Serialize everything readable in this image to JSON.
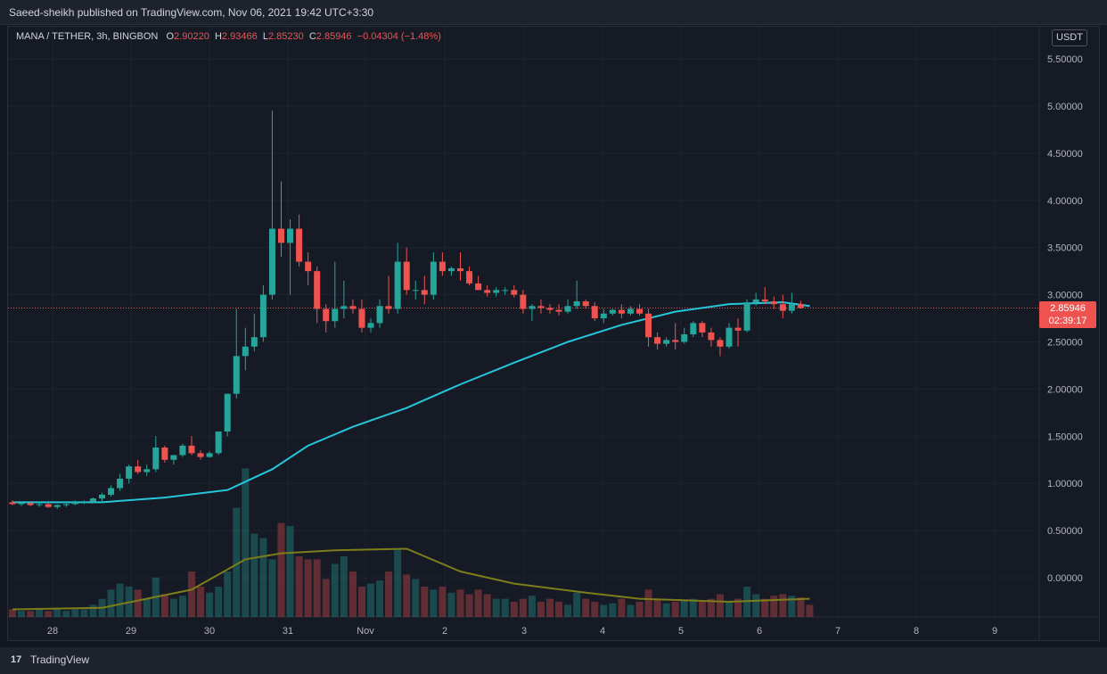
{
  "header": {
    "published": "Saeed-sheikh published on TradingView.com, Nov 06, 2021 19:42 UTC+3:30"
  },
  "legend": {
    "symbol": "MANA / TETHER, 3h, BINGBON",
    "o_label": "O",
    "o_value": "2.90220",
    "h_label": "H",
    "h_value": "2.93466",
    "l_label": "L",
    "l_value": "2.85230",
    "c_label": "C",
    "c_value": "2.85946",
    "change": "−0.04304 (−1.48%)"
  },
  "currency_button": "USDT",
  "price_tag": {
    "price": "2.85946",
    "countdown": "02:39:17"
  },
  "footer": {
    "brand": "TradingView"
  },
  "colors": {
    "up": "#26a69a",
    "down": "#ef5350",
    "ma": "#26c6da",
    "vol_ma": "#7d7d1a"
  },
  "chart_data": {
    "type": "candlestick",
    "y_axis_ticks": [
      "5.50000",
      "5.00000",
      "4.50000",
      "4.00000",
      "3.50000",
      "3.00000",
      "2.50000",
      "2.00000",
      "1.50000",
      "1.00000",
      "0.50000",
      "0.00000"
    ],
    "x_axis_ticks": [
      "28",
      "29",
      "30",
      "31",
      "Nov",
      "2",
      "3",
      "4",
      "5",
      "6",
      "7",
      "8",
      "9"
    ],
    "last_price": 2.85946,
    "candles": [
      {
        "o": 0.8,
        "h": 0.82,
        "l": 0.77,
        "c": 0.78
      },
      {
        "o": 0.78,
        "h": 0.8,
        "l": 0.76,
        "c": 0.79
      },
      {
        "o": 0.79,
        "h": 0.8,
        "l": 0.76,
        "c": 0.77
      },
      {
        "o": 0.77,
        "h": 0.79,
        "l": 0.75,
        "c": 0.78
      },
      {
        "o": 0.78,
        "h": 0.79,
        "l": 0.74,
        "c": 0.75
      },
      {
        "o": 0.75,
        "h": 0.78,
        "l": 0.73,
        "c": 0.77
      },
      {
        "o": 0.77,
        "h": 0.8,
        "l": 0.75,
        "c": 0.78
      },
      {
        "o": 0.78,
        "h": 0.82,
        "l": 0.77,
        "c": 0.8
      },
      {
        "o": 0.8,
        "h": 0.82,
        "l": 0.78,
        "c": 0.81
      },
      {
        "o": 0.81,
        "h": 0.85,
        "l": 0.79,
        "c": 0.84
      },
      {
        "o": 0.84,
        "h": 0.9,
        "l": 0.8,
        "c": 0.88
      },
      {
        "o": 0.88,
        "h": 0.98,
        "l": 0.86,
        "c": 0.95
      },
      {
        "o": 0.95,
        "h": 1.1,
        "l": 0.92,
        "c": 1.05
      },
      {
        "o": 1.05,
        "h": 1.2,
        "l": 1.0,
        "c": 1.18
      },
      {
        "o": 1.18,
        "h": 1.25,
        "l": 1.1,
        "c": 1.12
      },
      {
        "o": 1.12,
        "h": 1.2,
        "l": 1.08,
        "c": 1.15
      },
      {
        "o": 1.15,
        "h": 1.5,
        "l": 1.12,
        "c": 1.38
      },
      {
        "o": 1.38,
        "h": 1.4,
        "l": 1.22,
        "c": 1.25
      },
      {
        "o": 1.25,
        "h": 1.3,
        "l": 1.2,
        "c": 1.3
      },
      {
        "o": 1.3,
        "h": 1.42,
        "l": 1.28,
        "c": 1.4
      },
      {
        "o": 1.4,
        "h": 1.5,
        "l": 1.3,
        "c": 1.32
      },
      {
        "o": 1.32,
        "h": 1.35,
        "l": 1.25,
        "c": 1.28
      },
      {
        "o": 1.28,
        "h": 1.34,
        "l": 1.27,
        "c": 1.32
      },
      {
        "o": 1.32,
        "h": 1.55,
        "l": 1.3,
        "c": 1.55
      },
      {
        "o": 1.55,
        "h": 1.95,
        "l": 1.5,
        "c": 1.95
      },
      {
        "o": 1.95,
        "h": 2.85,
        "l": 1.9,
        "c": 2.35
      },
      {
        "o": 2.35,
        "h": 2.65,
        "l": 2.2,
        "c": 2.45
      },
      {
        "o": 2.45,
        "h": 2.8,
        "l": 2.4,
        "c": 2.55
      },
      {
        "o": 2.55,
        "h": 3.1,
        "l": 2.5,
        "c": 3.0
      },
      {
        "o": 3.0,
        "h": 4.95,
        "l": 2.95,
        "c": 3.7
      },
      {
        "o": 3.7,
        "h": 4.2,
        "l": 3.4,
        "c": 3.55
      },
      {
        "o": 3.55,
        "h": 3.8,
        "l": 3.0,
        "c": 3.7
      },
      {
        "o": 3.7,
        "h": 3.85,
        "l": 3.3,
        "c": 3.35
      },
      {
        "o": 3.35,
        "h": 3.45,
        "l": 3.1,
        "c": 3.25
      },
      {
        "o": 3.25,
        "h": 3.3,
        "l": 2.7,
        "c": 2.85
      },
      {
        "o": 2.85,
        "h": 2.9,
        "l": 2.6,
        "c": 2.72
      },
      {
        "o": 2.72,
        "h": 3.35,
        "l": 2.65,
        "c": 2.85
      },
      {
        "o": 2.85,
        "h": 3.15,
        "l": 2.75,
        "c": 2.88
      },
      {
        "o": 2.88,
        "h": 2.95,
        "l": 2.8,
        "c": 2.85
      },
      {
        "o": 2.85,
        "h": 2.95,
        "l": 2.6,
        "c": 2.65
      },
      {
        "o": 2.65,
        "h": 2.75,
        "l": 2.6,
        "c": 2.7
      },
      {
        "o": 2.7,
        "h": 2.95,
        "l": 2.65,
        "c": 2.88
      },
      {
        "o": 2.88,
        "h": 3.2,
        "l": 2.8,
        "c": 2.85
      },
      {
        "o": 2.85,
        "h": 3.55,
        "l": 2.8,
        "c": 3.35
      },
      {
        "o": 3.35,
        "h": 3.5,
        "l": 3.0,
        "c": 3.05
      },
      {
        "o": 3.05,
        "h": 3.15,
        "l": 2.95,
        "c": 3.05
      },
      {
        "o": 3.05,
        "h": 3.2,
        "l": 2.9,
        "c": 3.0
      },
      {
        "o": 3.0,
        "h": 3.45,
        "l": 2.95,
        "c": 3.35
      },
      {
        "o": 3.35,
        "h": 3.45,
        "l": 3.2,
        "c": 3.25
      },
      {
        "o": 3.25,
        "h": 3.3,
        "l": 3.2,
        "c": 3.28
      },
      {
        "o": 3.28,
        "h": 3.45,
        "l": 3.15,
        "c": 3.25
      },
      {
        "o": 3.25,
        "h": 3.3,
        "l": 3.1,
        "c": 3.12
      },
      {
        "o": 3.12,
        "h": 3.2,
        "l": 3.05,
        "c": 3.05
      },
      {
        "o": 3.05,
        "h": 3.1,
        "l": 2.98,
        "c": 3.02
      },
      {
        "o": 3.02,
        "h": 3.08,
        "l": 2.98,
        "c": 3.05
      },
      {
        "o": 3.05,
        "h": 3.08,
        "l": 3.0,
        "c": 3.05
      },
      {
        "o": 3.05,
        "h": 3.1,
        "l": 2.97,
        "c": 3.0
      },
      {
        "o": 3.0,
        "h": 3.05,
        "l": 2.8,
        "c": 2.85
      },
      {
        "o": 2.85,
        "h": 2.9,
        "l": 2.72,
        "c": 2.88
      },
      {
        "o": 2.88,
        "h": 2.95,
        "l": 2.8,
        "c": 2.86
      },
      {
        "o": 2.86,
        "h": 2.9,
        "l": 2.8,
        "c": 2.84
      },
      {
        "o": 2.84,
        "h": 2.9,
        "l": 2.78,
        "c": 2.82
      },
      {
        "o": 2.82,
        "h": 2.95,
        "l": 2.8,
        "c": 2.88
      },
      {
        "o": 2.88,
        "h": 3.15,
        "l": 2.85,
        "c": 2.93
      },
      {
        "o": 2.93,
        "h": 2.95,
        "l": 2.85,
        "c": 2.88
      },
      {
        "o": 2.88,
        "h": 2.92,
        "l": 2.72,
        "c": 2.75
      },
      {
        "o": 2.75,
        "h": 2.85,
        "l": 2.7,
        "c": 2.8
      },
      {
        "o": 2.8,
        "h": 2.85,
        "l": 2.78,
        "c": 2.84
      },
      {
        "o": 2.84,
        "h": 2.9,
        "l": 2.75,
        "c": 2.8
      },
      {
        "o": 2.8,
        "h": 2.88,
        "l": 2.78,
        "c": 2.85
      },
      {
        "o": 2.85,
        "h": 2.9,
        "l": 2.78,
        "c": 2.8
      },
      {
        "o": 2.8,
        "h": 2.85,
        "l": 2.45,
        "c": 2.55
      },
      {
        "o": 2.55,
        "h": 2.6,
        "l": 2.42,
        "c": 2.48
      },
      {
        "o": 2.48,
        "h": 2.55,
        "l": 2.45,
        "c": 2.52
      },
      {
        "o": 2.52,
        "h": 2.7,
        "l": 2.42,
        "c": 2.5
      },
      {
        "o": 2.5,
        "h": 2.65,
        "l": 2.48,
        "c": 2.58
      },
      {
        "o": 2.58,
        "h": 2.72,
        "l": 2.55,
        "c": 2.7
      },
      {
        "o": 2.7,
        "h": 2.72,
        "l": 2.55,
        "c": 2.6
      },
      {
        "o": 2.6,
        "h": 2.65,
        "l": 2.45,
        "c": 2.52
      },
      {
        "o": 2.52,
        "h": 2.55,
        "l": 2.35,
        "c": 2.45
      },
      {
        "o": 2.45,
        "h": 2.7,
        "l": 2.43,
        "c": 2.65
      },
      {
        "o": 2.65,
        "h": 2.75,
        "l": 2.45,
        "c": 2.62
      },
      {
        "o": 2.62,
        "h": 2.95,
        "l": 2.6,
        "c": 2.92
      },
      {
        "o": 2.92,
        "h": 3.02,
        "l": 2.88,
        "c": 2.95
      },
      {
        "o": 2.95,
        "h": 3.08,
        "l": 2.9,
        "c": 2.93
      },
      {
        "o": 2.93,
        "h": 2.98,
        "l": 2.85,
        "c": 2.9
      },
      {
        "o": 2.9,
        "h": 3.0,
        "l": 2.75,
        "c": 2.83
      },
      {
        "o": 2.83,
        "h": 3.02,
        "l": 2.8,
        "c": 2.9
      },
      {
        "o": 2.9022,
        "h": 2.93466,
        "l": 2.8523,
        "c": 2.85946
      }
    ],
    "ma_line": [
      {
        "i": 0,
        "v": 0.8
      },
      {
        "i": 10,
        "v": 0.8
      },
      {
        "i": 17,
        "v": 0.85
      },
      {
        "i": 24,
        "v": 0.93
      },
      {
        "i": 29,
        "v": 1.15
      },
      {
        "i": 33,
        "v": 1.4
      },
      {
        "i": 38,
        "v": 1.6
      },
      {
        "i": 44,
        "v": 1.8
      },
      {
        "i": 50,
        "v": 2.05
      },
      {
        "i": 56,
        "v": 2.28
      },
      {
        "i": 62,
        "v": 2.5
      },
      {
        "i": 68,
        "v": 2.68
      },
      {
        "i": 74,
        "v": 2.82
      },
      {
        "i": 80,
        "v": 2.9
      },
      {
        "i": 86,
        "v": 2.92
      },
      {
        "i": 89,
        "v": 2.88
      }
    ],
    "volumes": [
      5,
      4,
      4,
      5,
      4,
      5,
      4,
      5,
      5,
      8,
      12,
      18,
      22,
      20,
      18,
      12,
      26,
      15,
      12,
      14,
      30,
      20,
      16,
      20,
      30,
      72,
      98,
      55,
      52,
      38,
      62,
      60,
      40,
      38,
      38,
      25,
      35,
      40,
      30,
      20,
      22,
      24,
      30,
      45,
      28,
      25,
      20,
      18,
      20,
      16,
      18,
      15,
      18,
      15,
      12,
      12,
      10,
      12,
      14,
      10,
      12,
      10,
      8,
      16,
      12,
      10,
      8,
      9,
      12,
      8,
      10,
      18,
      12,
      9,
      10,
      11,
      12,
      10,
      12,
      15,
      10,
      12,
      20,
      15,
      12,
      14,
      15,
      14,
      13,
      8
    ],
    "vol_ma": [
      {
        "i": 0,
        "v": 5
      },
      {
        "i": 10,
        "v": 6
      },
      {
        "i": 20,
        "v": 18
      },
      {
        "i": 26,
        "v": 38
      },
      {
        "i": 30,
        "v": 42
      },
      {
        "i": 36,
        "v": 44
      },
      {
        "i": 44,
        "v": 45
      },
      {
        "i": 50,
        "v": 30
      },
      {
        "i": 56,
        "v": 22
      },
      {
        "i": 64,
        "v": 16
      },
      {
        "i": 70,
        "v": 12
      },
      {
        "i": 80,
        "v": 10
      },
      {
        "i": 89,
        "v": 12
      }
    ]
  }
}
